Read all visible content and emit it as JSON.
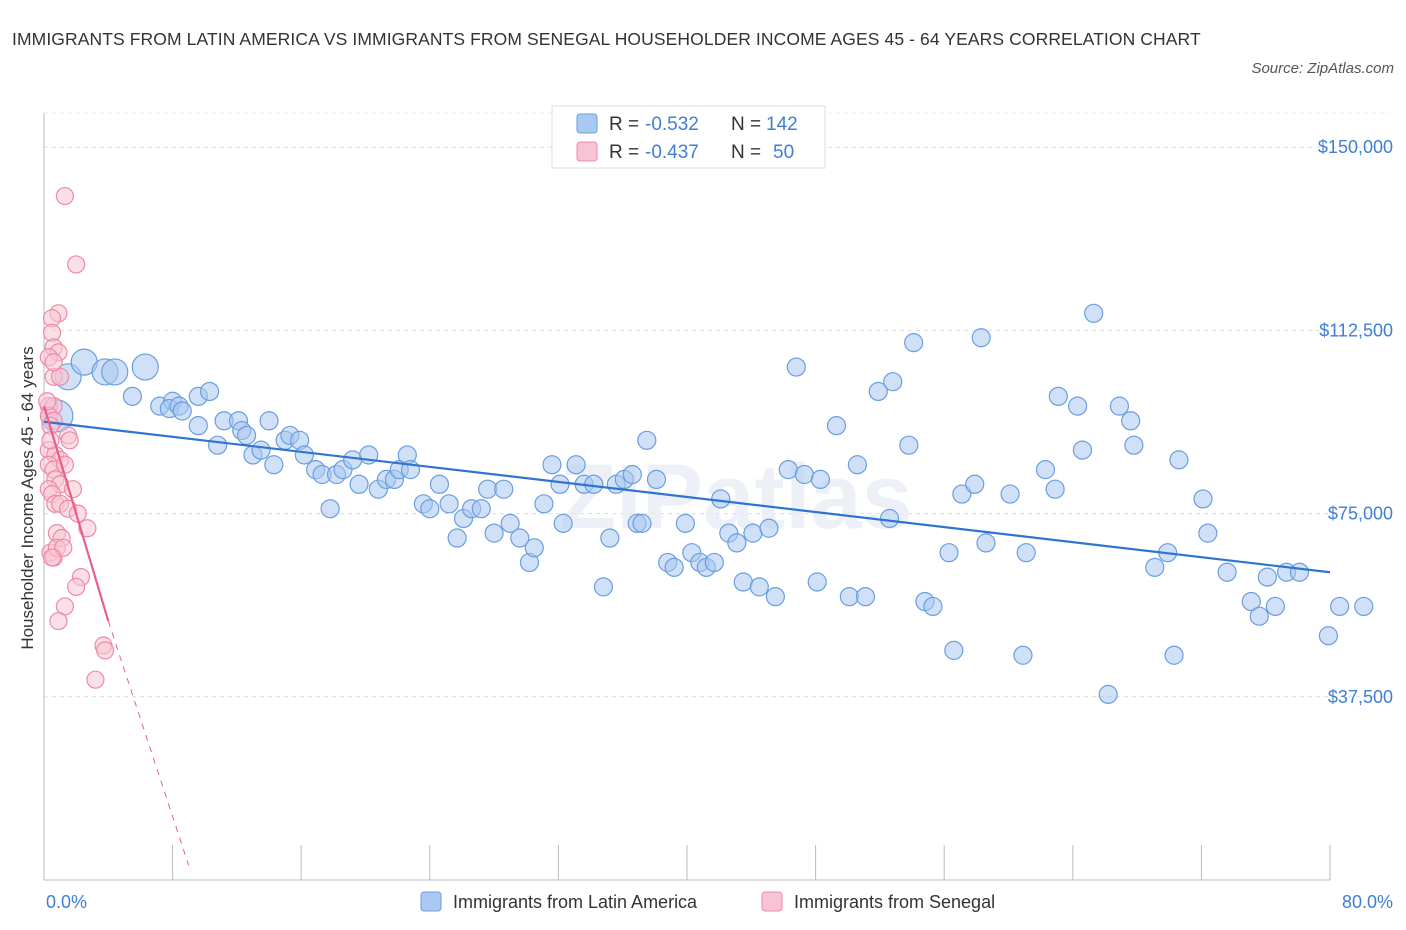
{
  "title": "IMMIGRANTS FROM LATIN AMERICA VS IMMIGRANTS FROM SENEGAL HOUSEHOLDER INCOME AGES 45 - 64 YEARS CORRELATION CHART",
  "source": "Source: ZipAtlas.com",
  "watermark": "ZIPatlas",
  "colors": {
    "blue_fill": "#aac8f0",
    "blue_stroke": "#6a9ee0",
    "blue_line": "#2f74d0",
    "pink_fill": "#f8c4d4",
    "pink_stroke": "#ee8aa8",
    "pink_line": "#e8608a",
    "axis_text": "#3f7fd6",
    "grid": "#dddddd"
  },
  "legend": {
    "r_label": "R =",
    "n_label": "N =",
    "entries": [
      {
        "r": "-0.532",
        "n": "142"
      },
      {
        "r": "-0.437",
        "n": "50"
      }
    ]
  },
  "chart_data": {
    "type": "scatter",
    "title": "IMMIGRANTS FROM LATIN AMERICA VS IMMIGRANTS FROM SENEGAL HOUSEHOLDER INCOME AGES 45 - 64 YEARS CORRELATION CHART",
    "xlabel": "",
    "ylabel": "Householder Income Ages 45 - 64 years",
    "xlim": [
      0,
      80
    ],
    "ylim": [
      0,
      157000
    ],
    "x_tick_labels": [
      "0.0%",
      "80.0%"
    ],
    "y_ticks": [
      37500,
      75000,
      112500,
      150000
    ],
    "y_tick_labels": [
      "$37,500",
      "$75,000",
      "$112,500",
      "$150,000"
    ],
    "grid": true,
    "legend_position": "top-center",
    "series": [
      {
        "name": "Immigrants from Latin America",
        "color": "blue",
        "R": -0.532,
        "N": 142,
        "trend": {
          "x0": 0,
          "y0": 93800,
          "x1": 80,
          "y1": 63000
        },
        "points": [
          [
            0.8,
            95000
          ],
          [
            1.5,
            103000
          ],
          [
            2.5,
            106000
          ],
          [
            3.8,
            104000
          ],
          [
            4.4,
            104000
          ],
          [
            6.3,
            105000
          ],
          [
            5.5,
            99000
          ],
          [
            7.2,
            97000
          ],
          [
            8.0,
            98000
          ],
          [
            7.8,
            96500
          ],
          [
            8.4,
            97000
          ],
          [
            8.6,
            96000
          ],
          [
            9.6,
            99000
          ],
          [
            10.3,
            100000
          ],
          [
            9.6,
            93000
          ],
          [
            10.8,
            89000
          ],
          [
            11.2,
            94000
          ],
          [
            12.1,
            94000
          ],
          [
            12.3,
            92000
          ],
          [
            12.6,
            91000
          ],
          [
            13.0,
            87000
          ],
          [
            13.5,
            88000
          ],
          [
            14.0,
            94000
          ],
          [
            14.3,
            85000
          ],
          [
            15.0,
            90000
          ],
          [
            15.3,
            91000
          ],
          [
            15.9,
            90000
          ],
          [
            16.2,
            87000
          ],
          [
            16.9,
            84000
          ],
          [
            17.3,
            83000
          ],
          [
            17.8,
            76000
          ],
          [
            18.2,
            83000
          ],
          [
            18.6,
            84000
          ],
          [
            19.2,
            86000
          ],
          [
            19.6,
            81000
          ],
          [
            20.2,
            87000
          ],
          [
            20.8,
            80000
          ],
          [
            21.3,
            82000
          ],
          [
            21.8,
            82000
          ],
          [
            22.1,
            84000
          ],
          [
            22.6,
            87000
          ],
          [
            22.8,
            84000
          ],
          [
            23.6,
            77000
          ],
          [
            24.0,
            76000
          ],
          [
            24.6,
            81000
          ],
          [
            25.2,
            77000
          ],
          [
            25.7,
            70000
          ],
          [
            26.1,
            74000
          ],
          [
            26.6,
            76000
          ],
          [
            27.2,
            76000
          ],
          [
            27.6,
            80000
          ],
          [
            28.0,
            71000
          ],
          [
            28.6,
            80000
          ],
          [
            29.0,
            73000
          ],
          [
            29.6,
            70000
          ],
          [
            30.2,
            65000
          ],
          [
            30.5,
            68000
          ],
          [
            31.1,
            77000
          ],
          [
            31.6,
            85000
          ],
          [
            32.1,
            81000
          ],
          [
            32.3,
            73000
          ],
          [
            33.1,
            85000
          ],
          [
            33.6,
            81000
          ],
          [
            34.2,
            81000
          ],
          [
            34.8,
            60000
          ],
          [
            35.2,
            70000
          ],
          [
            35.6,
            81000
          ],
          [
            36.1,
            82000
          ],
          [
            36.6,
            83000
          ],
          [
            36.9,
            73000
          ],
          [
            37.2,
            73000
          ],
          [
            37.5,
            90000
          ],
          [
            38.1,
            82000
          ],
          [
            38.8,
            65000
          ],
          [
            39.2,
            64000
          ],
          [
            39.9,
            73000
          ],
          [
            40.3,
            67000
          ],
          [
            40.8,
            65000
          ],
          [
            41.2,
            64000
          ],
          [
            41.7,
            65000
          ],
          [
            42.1,
            78000
          ],
          [
            42.6,
            71000
          ],
          [
            43.1,
            69000
          ],
          [
            43.5,
            61000
          ],
          [
            44.1,
            71000
          ],
          [
            44.5,
            60000
          ],
          [
            45.1,
            72000
          ],
          [
            45.5,
            58000
          ],
          [
            46.3,
            84000
          ],
          [
            46.8,
            105000
          ],
          [
            47.3,
            83000
          ],
          [
            48.1,
            61000
          ],
          [
            48.3,
            82000
          ],
          [
            49.3,
            93000
          ],
          [
            50.1,
            58000
          ],
          [
            50.6,
            85000
          ],
          [
            51.1,
            58000
          ],
          [
            51.9,
            100000
          ],
          [
            52.6,
            74000
          ],
          [
            52.8,
            102000
          ],
          [
            53.8,
            89000
          ],
          [
            54.1,
            110000
          ],
          [
            54.8,
            57000
          ],
          [
            55.3,
            56000
          ],
          [
            56.3,
            67000
          ],
          [
            56.6,
            47000
          ],
          [
            57.1,
            79000
          ],
          [
            57.9,
            81000
          ],
          [
            58.3,
            111000
          ],
          [
            58.6,
            69000
          ],
          [
            60.1,
            79000
          ],
          [
            60.9,
            46000
          ],
          [
            61.1,
            67000
          ],
          [
            62.3,
            84000
          ],
          [
            62.9,
            80000
          ],
          [
            63.1,
            99000
          ],
          [
            64.3,
            97000
          ],
          [
            64.6,
            88000
          ],
          [
            65.3,
            116000
          ],
          [
            66.2,
            38000
          ],
          [
            66.9,
            97000
          ],
          [
            67.6,
            94000
          ],
          [
            67.8,
            89000
          ],
          [
            69.1,
            64000
          ],
          [
            69.9,
            67000
          ],
          [
            70.3,
            46000
          ],
          [
            70.6,
            86000
          ],
          [
            72.1,
            78000
          ],
          [
            72.4,
            71000
          ],
          [
            73.6,
            63000
          ],
          [
            75.1,
            57000
          ],
          [
            75.6,
            54000
          ],
          [
            76.1,
            62000
          ],
          [
            76.6,
            56000
          ],
          [
            77.3,
            63000
          ],
          [
            78.1,
            63000
          ],
          [
            79.9,
            50000
          ],
          [
            80.6,
            56000
          ],
          [
            82.1,
            56000
          ]
        ]
      },
      {
        "name": "Immigrants from Senegal",
        "color": "pink",
        "R": -0.437,
        "N": 50,
        "trend": {
          "x0": 0,
          "y0": 97000,
          "x1": 4,
          "y1": 53000,
          "dashed_to_x": 9,
          "dashed_to_y": 3000
        },
        "points": [
          [
            1.3,
            140000
          ],
          [
            2.0,
            126000
          ],
          [
            0.9,
            116000
          ],
          [
            0.5,
            115000
          ],
          [
            0.5,
            112000
          ],
          [
            0.6,
            109000
          ],
          [
            0.9,
            108000
          ],
          [
            0.3,
            107000
          ],
          [
            0.6,
            103000
          ],
          [
            1.0,
            103000
          ],
          [
            0.3,
            97000
          ],
          [
            0.6,
            97000
          ],
          [
            0.3,
            95000
          ],
          [
            0.6,
            94000
          ],
          [
            0.4,
            93000
          ],
          [
            1.5,
            91000
          ],
          [
            1.6,
            90000
          ],
          [
            0.3,
            88000
          ],
          [
            0.7,
            87000
          ],
          [
            1.0,
            86000
          ],
          [
            0.3,
            85000
          ],
          [
            0.6,
            84000
          ],
          [
            1.3,
            85000
          ],
          [
            0.7,
            82000
          ],
          [
            1.0,
            81000
          ],
          [
            0.3,
            80000
          ],
          [
            1.8,
            80000
          ],
          [
            0.5,
            79000
          ],
          [
            0.7,
            77000
          ],
          [
            1.0,
            77000
          ],
          [
            1.5,
            76000
          ],
          [
            2.1,
            75000
          ],
          [
            2.7,
            72000
          ],
          [
            0.8,
            71000
          ],
          [
            1.1,
            70000
          ],
          [
            0.4,
            67000
          ],
          [
            0.6,
            66000
          ],
          [
            0.8,
            68000
          ],
          [
            1.2,
            68000
          ],
          [
            0.5,
            66000
          ],
          [
            2.3,
            62000
          ],
          [
            2.0,
            60000
          ],
          [
            1.3,
            56000
          ],
          [
            0.9,
            53000
          ],
          [
            3.7,
            48000
          ],
          [
            3.8,
            47000
          ],
          [
            3.2,
            41000
          ],
          [
            0.6,
            106000
          ],
          [
            0.4,
            90000
          ],
          [
            0.2,
            98000
          ]
        ]
      }
    ]
  }
}
